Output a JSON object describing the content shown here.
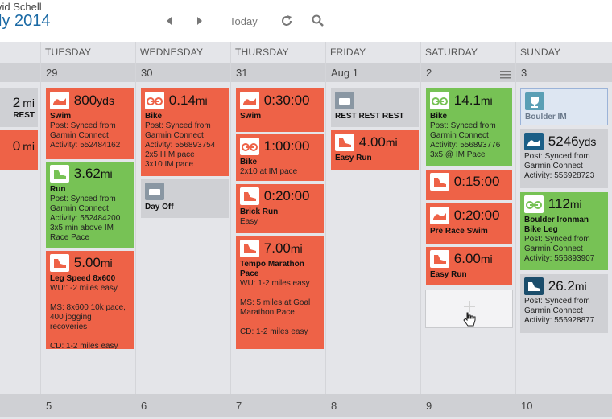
{
  "header": {
    "user_name": "vid Schell",
    "month_title": "ly 2014",
    "prev_icon": "chevron-left-icon",
    "next_icon": "chevron-right-icon",
    "today_label": "Today",
    "refresh_icon": "refresh-icon",
    "search_icon": "search-icon"
  },
  "days": [
    "TUESDAY",
    "WEDNESDAY",
    "THURSDAY",
    "FRIDAY",
    "SATURDAY",
    "SUNDAY"
  ],
  "dates_row1": [
    "29",
    "30",
    "31",
    "Aug 1",
    "2",
    "3"
  ],
  "dates_row2": [
    "5",
    "6",
    "7",
    "8",
    "9",
    "10"
  ],
  "colors": {
    "red": "#ee6247",
    "green": "#77c255",
    "grey": "#cfd0d4",
    "accent": "#1b6aa5"
  },
  "monday": {
    "card1_value": "2",
    "card1_unit": "mi",
    "card1_title": "REST",
    "card2_value": "0",
    "card2_unit": "mi"
  },
  "tuesday": {
    "swim": {
      "value": "800",
      "unit": "yds",
      "title": "Swim",
      "line1": "Post: Synced from",
      "line2": "Garmin Connect",
      "line3": "Activity: 552484162"
    },
    "run": {
      "value": "3.62",
      "unit": "mi",
      "title": "Run",
      "line1": "Post: Synced from",
      "line2": "Garmin Connect",
      "line3": "Activity: 552484200",
      "line4": "3x5 min above IM",
      "line5": "Race Pace"
    },
    "leg": {
      "value": "5.00",
      "unit": "mi",
      "title": "Leg Speed 8x600",
      "line1": "WU:1-2 miles easy",
      "line2": "MS: 8x600 10k pace,",
      "line3": "400 jogging recoveries",
      "line4": "CD: 1-2 miles easy"
    }
  },
  "wednesday": {
    "bike": {
      "value": "0.14",
      "unit": "mi",
      "title": "Bike",
      "line1": "Post: Synced from",
      "line2": "Garmin Connect",
      "line3": "Activity: 556893754",
      "line4": "2x5 HIM pace",
      "line5": "3x10 IM pace"
    },
    "dayoff": {
      "title": "Day Off"
    }
  },
  "thursday": {
    "swim": {
      "value": "0:30:00",
      "title": "Swim"
    },
    "bike": {
      "value": "1:00:00",
      "title": "Bike",
      "line1": "2x10 at IM pace"
    },
    "brick": {
      "value": "0:20:00",
      "title": "Brick Run",
      "line1": "Easy"
    },
    "tempo": {
      "value": "7.00",
      "unit": "mi",
      "title": "Tempo Marathon",
      "title2": "Pace",
      "line1": "WU: 1-2 miles easy",
      "line2": "MS: 5 miles at Goal",
      "line3": "Marathon Pace",
      "line4": "CD: 1-2 miles easy"
    }
  },
  "friday": {
    "rest": {
      "title": "REST REST REST"
    },
    "run": {
      "value": "4.00",
      "unit": "mi",
      "title": "Easy Run"
    }
  },
  "saturday": {
    "bike": {
      "value": "14.1",
      "unit": "mi",
      "title": "Bike",
      "line1": "Post: Synced from",
      "line2": "Garmin Connect",
      "line3": "Activity: 556893776",
      "line4": "3x5 @ IM Pace"
    },
    "run1": {
      "value": "0:15:00"
    },
    "swim": {
      "value": "0:20:00",
      "title": "Pre Race Swim"
    },
    "run2": {
      "value": "6.00",
      "unit": "mi",
      "title": "Easy Run"
    }
  },
  "sunday": {
    "race": {
      "title": "Boulder IM"
    },
    "swim": {
      "value": "5246",
      "unit": "yds",
      "line1": "Post: Synced from",
      "line2": "Garmin Connect",
      "line3": "Activity: 556928723"
    },
    "bike": {
      "value": "112",
      "unit": "mi",
      "title": "Boulder Ironman",
      "title2": "Bike Leg",
      "line1": "Post: Synced from",
      "line2": "Garmin Connect",
      "line3": "Activity: 556893907"
    },
    "run": {
      "value": "26.2",
      "unit": "mi",
      "line1": "Post: Synced from",
      "line2": "Garmin Connect",
      "line3": "Activity: 556928877"
    }
  }
}
